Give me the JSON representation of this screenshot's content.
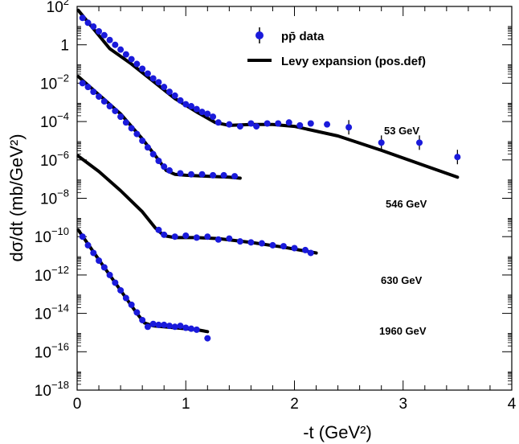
{
  "chart_data": {
    "type": "scatter",
    "xlabel": "-t (GeV²)",
    "ylabel": "dσ/dt (mb/GeV²)",
    "xlim": [
      0,
      4
    ],
    "ylim_log10": [
      -18,
      2
    ],
    "yscale": "log",
    "x_ticks": [
      "0",
      "1",
      "2",
      "3",
      "4"
    ],
    "y_ticks": [
      {
        "base": "10",
        "exp": "2"
      },
      {
        "base": "1",
        "exp": ""
      },
      {
        "base": "10",
        "exp": "−2"
      },
      {
        "base": "10",
        "exp": "−4"
      },
      {
        "base": "10",
        "exp": "−6"
      },
      {
        "base": "10",
        "exp": "−8"
      },
      {
        "base": "10",
        "exp": "−10"
      },
      {
        "base": "10",
        "exp": "−12"
      },
      {
        "base": "10",
        "exp": "−14"
      },
      {
        "base": "10",
        "exp": "−16"
      },
      {
        "base": "10",
        "exp": "−18"
      }
    ],
    "legend": {
      "placement": "top-right",
      "data_label": "pp̄ data",
      "fit_label": "Levy expansion (pos.def)"
    },
    "colors": {
      "data": "#1a1adb",
      "fit": "#000000"
    },
    "series": [
      {
        "label": "53 GeV",
        "curve_knots": [
          [
            0.01,
            1.8
          ],
          [
            0.3,
            -0.2
          ],
          [
            0.5,
            -1.0
          ],
          [
            0.7,
            -1.9
          ],
          [
            0.9,
            -2.8
          ],
          [
            1.1,
            -3.5
          ],
          [
            1.27,
            -4.05
          ],
          [
            1.4,
            -4.2
          ],
          [
            1.6,
            -4.15
          ],
          [
            1.8,
            -4.15
          ],
          [
            2.0,
            -4.25
          ],
          [
            2.4,
            -4.75
          ],
          [
            2.8,
            -5.5
          ],
          [
            3.2,
            -6.3
          ],
          [
            3.5,
            -6.9
          ]
        ],
        "points": [
          [
            0.05,
            1.4
          ],
          [
            0.1,
            1.15
          ],
          [
            0.15,
            0.95
          ],
          [
            0.2,
            0.7
          ],
          [
            0.25,
            0.5
          ],
          [
            0.3,
            0.25
          ],
          [
            0.35,
            0.0
          ],
          [
            0.4,
            -0.25
          ],
          [
            0.45,
            -0.5
          ],
          [
            0.5,
            -0.75
          ],
          [
            0.55,
            -1.0
          ],
          [
            0.6,
            -1.25
          ],
          [
            0.65,
            -1.5
          ],
          [
            0.7,
            -1.75
          ],
          [
            0.75,
            -1.95
          ],
          [
            0.8,
            -2.2
          ],
          [
            0.85,
            -2.45
          ],
          [
            0.9,
            -2.65
          ],
          [
            0.95,
            -2.9
          ],
          [
            1.0,
            -3.1
          ],
          [
            1.05,
            -3.2
          ],
          [
            1.1,
            -3.35
          ],
          [
            1.15,
            -3.5
          ],
          [
            1.2,
            -3.6
          ],
          [
            1.25,
            -3.75
          ],
          [
            1.3,
            -4.05
          ],
          [
            1.4,
            -4.15
          ],
          [
            1.5,
            -4.25
          ],
          [
            1.6,
            -4.1
          ],
          [
            1.65,
            -4.25
          ],
          [
            1.75,
            -4.1
          ],
          [
            1.85,
            -4.1
          ],
          [
            1.95,
            -4.05
          ],
          [
            2.05,
            -4.2
          ],
          [
            2.15,
            -4.1
          ],
          [
            2.3,
            -4.15
          ],
          [
            2.5,
            -4.3
          ],
          [
            2.8,
            -5.1
          ],
          [
            3.15,
            -5.1
          ],
          [
            3.5,
            -5.85
          ]
        ]
      },
      {
        "label": "546 GeV",
        "curve_knots": [
          [
            0.01,
            -1.65
          ],
          [
            0.2,
            -2.6
          ],
          [
            0.4,
            -3.6
          ],
          [
            0.6,
            -4.9
          ],
          [
            0.75,
            -6.0
          ],
          [
            0.82,
            -6.55
          ],
          [
            0.9,
            -6.75
          ],
          [
            1.0,
            -6.8
          ],
          [
            1.2,
            -6.85
          ],
          [
            1.4,
            -6.9
          ],
          [
            1.5,
            -6.95
          ]
        ],
        "points": [
          [
            0.05,
            -2.0
          ],
          [
            0.1,
            -2.2
          ],
          [
            0.15,
            -2.45
          ],
          [
            0.2,
            -2.7
          ],
          [
            0.25,
            -2.95
          ],
          [
            0.3,
            -3.2
          ],
          [
            0.35,
            -3.45
          ],
          [
            0.4,
            -3.75
          ],
          [
            0.45,
            -4.05
          ],
          [
            0.5,
            -4.35
          ],
          [
            0.55,
            -4.65
          ],
          [
            0.6,
            -5.0
          ],
          [
            0.65,
            -5.35
          ],
          [
            0.7,
            -5.7
          ],
          [
            0.75,
            -6.05
          ],
          [
            0.8,
            -6.35
          ],
          [
            0.85,
            -6.55
          ],
          [
            0.95,
            -6.7
          ],
          [
            1.05,
            -6.75
          ],
          [
            1.15,
            -6.75
          ],
          [
            1.25,
            -6.8
          ],
          [
            1.35,
            -6.8
          ],
          [
            1.45,
            -6.85
          ]
        ]
      },
      {
        "label": "630 GeV",
        "curve_knots": [
          [
            0.01,
            -5.8
          ],
          [
            0.2,
            -6.6
          ],
          [
            0.4,
            -7.6
          ],
          [
            0.6,
            -8.7
          ],
          [
            0.72,
            -9.55
          ],
          [
            0.8,
            -9.95
          ],
          [
            0.9,
            -10.05
          ],
          [
            1.1,
            -10.05
          ],
          [
            1.3,
            -10.1
          ],
          [
            1.6,
            -10.3
          ],
          [
            1.9,
            -10.55
          ],
          [
            2.2,
            -10.85
          ]
        ],
        "points": [
          [
            0.75,
            -9.65
          ],
          [
            0.8,
            -9.9
          ],
          [
            0.9,
            -10.0
          ],
          [
            1.0,
            -9.95
          ],
          [
            1.1,
            -10.05
          ],
          [
            1.2,
            -10.0
          ],
          [
            1.3,
            -10.15
          ],
          [
            1.4,
            -10.1
          ],
          [
            1.5,
            -10.25
          ],
          [
            1.6,
            -10.3
          ],
          [
            1.7,
            -10.35
          ],
          [
            1.8,
            -10.45
          ],
          [
            1.9,
            -10.5
          ],
          [
            2.0,
            -10.6
          ],
          [
            2.1,
            -10.7
          ],
          [
            2.15,
            -10.85
          ]
        ]
      },
      {
        "label": "1960 GeV",
        "curve_knots": [
          [
            0.01,
            -9.65
          ],
          [
            0.2,
            -11.2
          ],
          [
            0.4,
            -12.8
          ],
          [
            0.55,
            -14.0
          ],
          [
            0.62,
            -14.5
          ],
          [
            0.7,
            -14.65
          ],
          [
            0.9,
            -14.75
          ],
          [
            1.1,
            -14.85
          ],
          [
            1.2,
            -14.95
          ]
        ],
        "points": [
          [
            0.05,
            -10.0
          ],
          [
            0.1,
            -10.45
          ],
          [
            0.15,
            -10.85
          ],
          [
            0.2,
            -11.25
          ],
          [
            0.25,
            -11.6
          ],
          [
            0.3,
            -12.0
          ],
          [
            0.35,
            -12.4
          ],
          [
            0.4,
            -12.8
          ],
          [
            0.45,
            -13.2
          ],
          [
            0.5,
            -13.55
          ],
          [
            0.55,
            -13.95
          ],
          [
            0.6,
            -14.35
          ],
          [
            0.65,
            -14.7
          ],
          [
            0.7,
            -14.55
          ],
          [
            0.75,
            -14.6
          ],
          [
            0.8,
            -14.6
          ],
          [
            0.85,
            -14.65
          ],
          [
            0.9,
            -14.7
          ],
          [
            0.95,
            -14.65
          ],
          [
            1.0,
            -14.75
          ],
          [
            1.05,
            -14.8
          ],
          [
            1.1,
            -14.85
          ],
          [
            1.2,
            -15.3
          ]
        ]
      }
    ]
  }
}
